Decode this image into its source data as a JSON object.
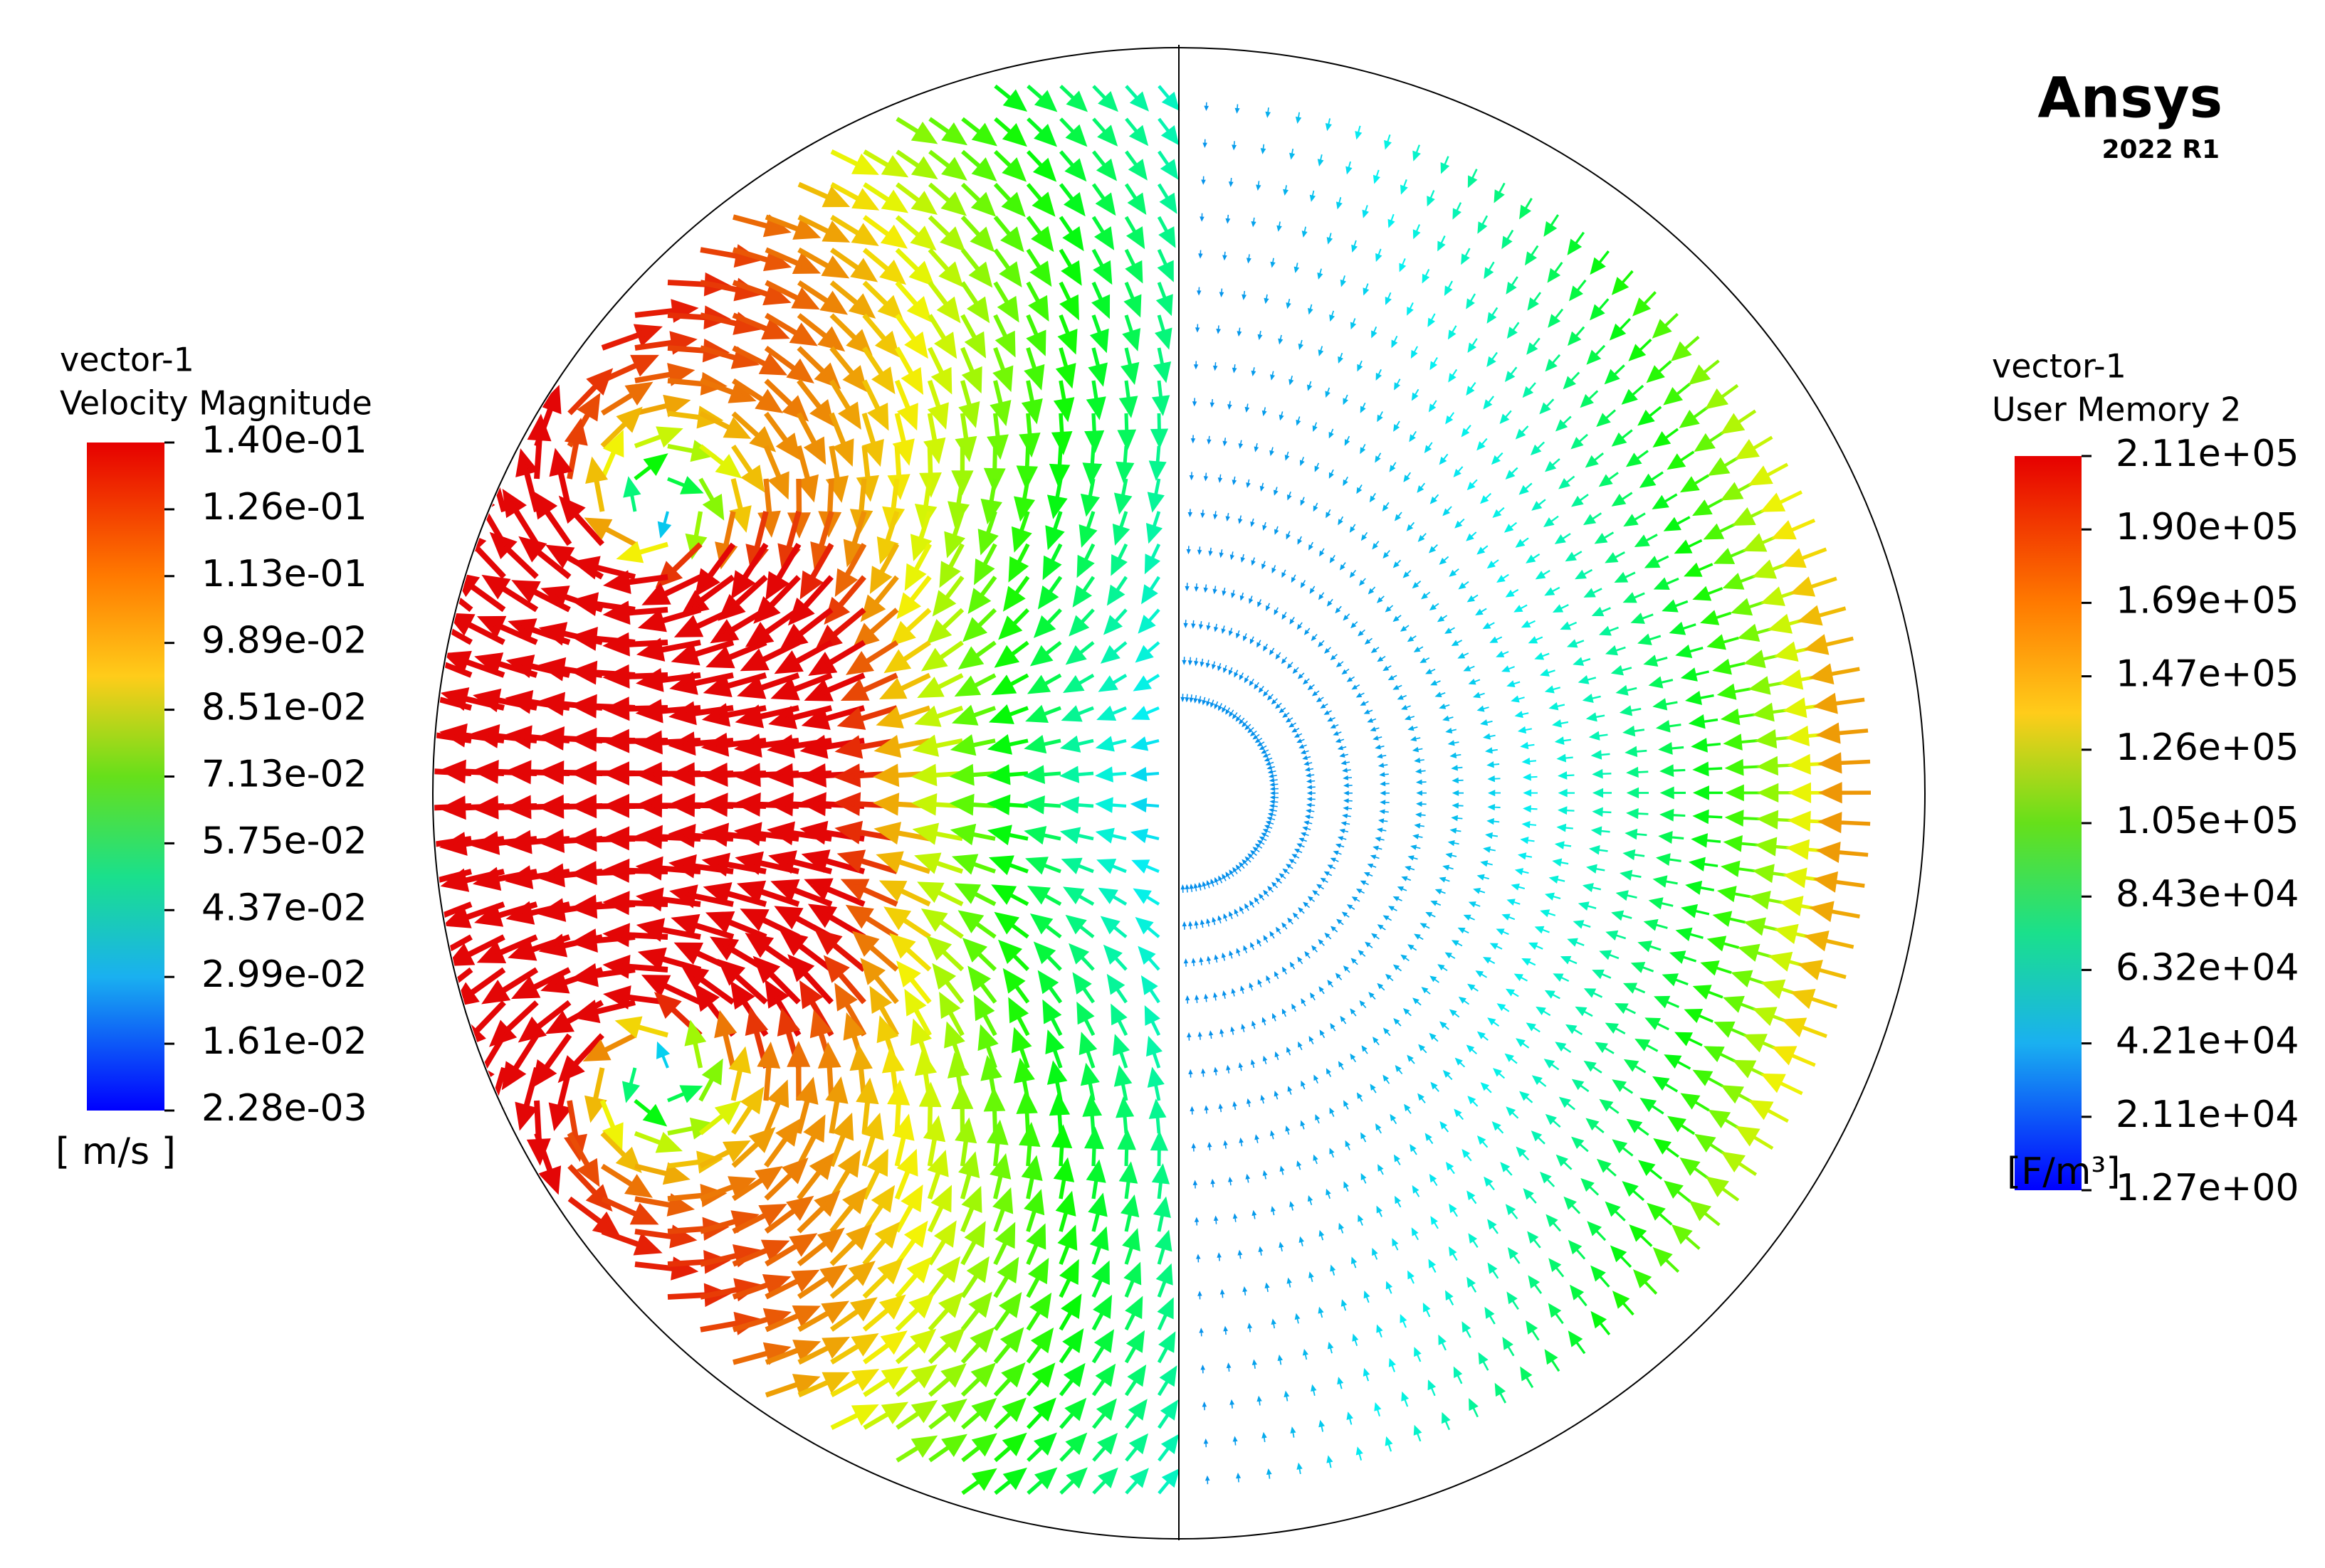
{
  "brand": {
    "name": "Ansys",
    "version": "2022 R1"
  },
  "legends": [
    {
      "title": [
        "vector-1",
        "Velocity Magnitude"
      ],
      "labels": [
        "1.40e-01",
        "1.26e-01",
        "1.13e-01",
        "9.89e-02",
        "8.51e-02",
        "7.13e-02",
        "5.75e-02",
        "4.37e-02",
        "2.99e-02",
        "1.61e-02",
        "2.28e-03"
      ],
      "unit": "[ m/s ]"
    },
    {
      "title": [
        "vector-1",
        "User Memory 2"
      ],
      "labels": [
        "2.11e+05",
        "1.90e+05",
        "1.69e+05",
        "1.47e+05",
        "1.26e+05",
        "1.05e+05",
        "8.43e+04",
        "6.32e+04",
        "4.21e+04",
        "2.11e+04",
        "1.27e+00"
      ],
      "unit": "[F/m³]"
    }
  ]
}
